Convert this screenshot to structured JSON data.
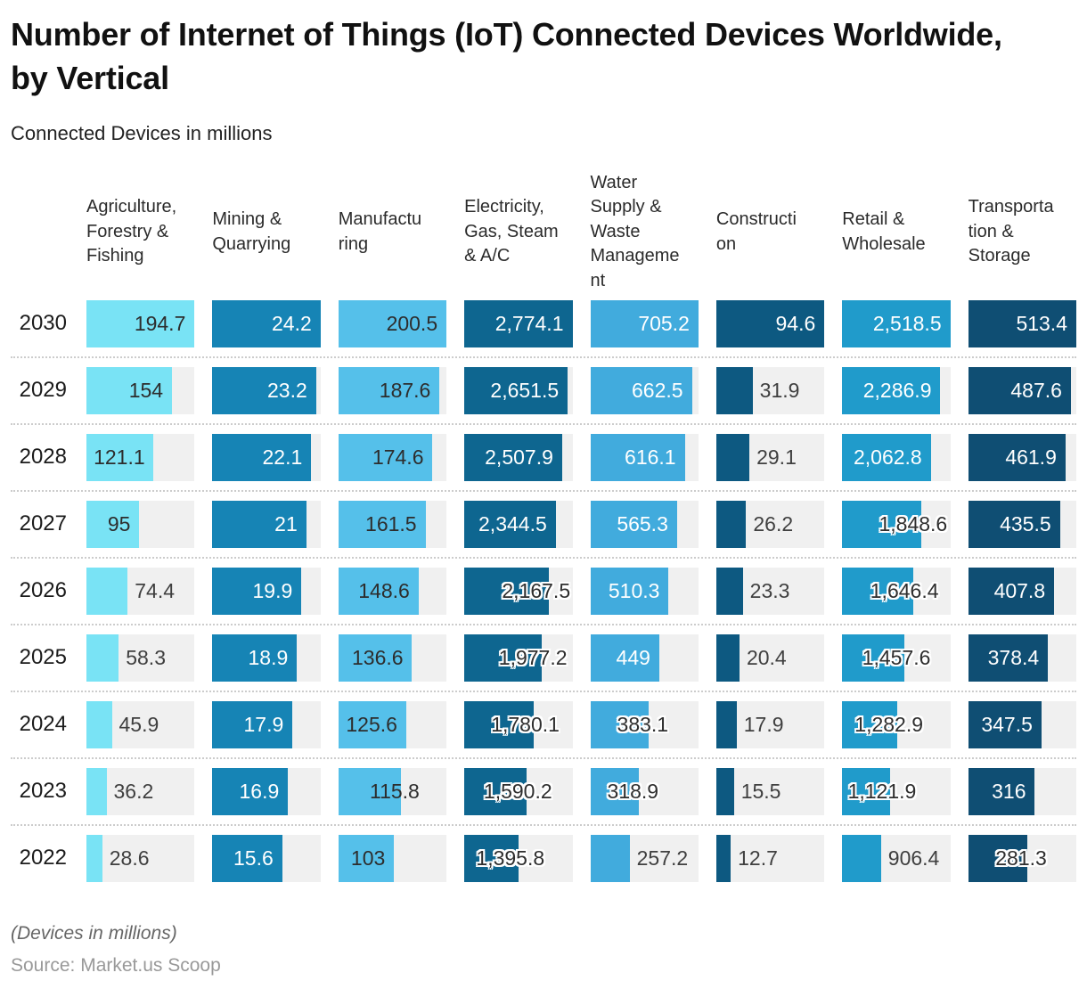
{
  "chart_data": {
    "type": "bar",
    "orientation": "horizontal",
    "title": "Number of Internet of Things (IoT) Connected Devices Worldwide, by Vertical",
    "subtitle": "Connected Devices in millions",
    "unit": "millions of connected devices",
    "categories": [
      "2030",
      "2029",
      "2028",
      "2027",
      "2026",
      "2025",
      "2024",
      "2023",
      "2022"
    ],
    "track_color": "#f0f0f0",
    "series": [
      {
        "name": "Agriculture, Forestry & Fishing",
        "header_display": "Agriculture,\nForestry &\nFishing",
        "color": "#79e3f5",
        "dark": false,
        "values": [
          194.7,
          154,
          121.1,
          95,
          74.4,
          58.3,
          45.9,
          36.2,
          28.6
        ]
      },
      {
        "name": "Mining & Quarrying",
        "header_display": "Mining &\nQuarrying",
        "color": "#1684b5",
        "dark": true,
        "values": [
          24.2,
          23.2,
          22.1,
          21,
          19.9,
          18.9,
          17.9,
          16.9,
          15.6
        ]
      },
      {
        "name": "Manufacturing",
        "header_display": "Manufactu\nring",
        "color": "#55c0ea",
        "dark": false,
        "values": [
          200.5,
          187.6,
          174.6,
          161.5,
          148.6,
          136.6,
          125.6,
          115.8,
          103
        ]
      },
      {
        "name": "Electricity, Gas, Steam & A/C",
        "header_display": "Electricity,\nGas, Steam\n& A/C",
        "color": "#0e6690",
        "dark": true,
        "values": [
          2774.1,
          2651.5,
          2507.9,
          2344.5,
          2167.5,
          1977.2,
          1780.1,
          1590.2,
          1395.8
        ]
      },
      {
        "name": "Water Supply & Waste Management",
        "header_display": "Water\nSupply &\nWaste\nManageme\nnt",
        "color": "#41abdd",
        "dark": true,
        "values": [
          705.2,
          662.5,
          616.1,
          565.3,
          510.3,
          449,
          383.1,
          318.9,
          257.2
        ]
      },
      {
        "name": "Construction",
        "header_display": "Constructi\non",
        "color": "#0d5981",
        "dark": true,
        "label_mode": "outside",
        "values": [
          94.6,
          31.9,
          29.1,
          26.2,
          23.3,
          20.4,
          17.9,
          15.5,
          12.7
        ]
      },
      {
        "name": "Retail & Wholesale",
        "header_display": "Retail &\nWholesale",
        "color": "#209bcb",
        "dark": true,
        "values": [
          2518.5,
          2286.9,
          2062.8,
          1848.6,
          1646.4,
          1457.6,
          1282.9,
          1121.9,
          906.4
        ]
      },
      {
        "name": "Transportation & Storage",
        "header_display": "Transporta\ntion &\nStorage",
        "color": "#0f4e73",
        "dark": true,
        "values": [
          513.4,
          487.6,
          461.9,
          435.5,
          407.8,
          378.4,
          347.5,
          316,
          281.3
        ]
      }
    ]
  },
  "footer": {
    "note": "(Devices in millions)",
    "source": "Source: Market.us Scoop"
  }
}
